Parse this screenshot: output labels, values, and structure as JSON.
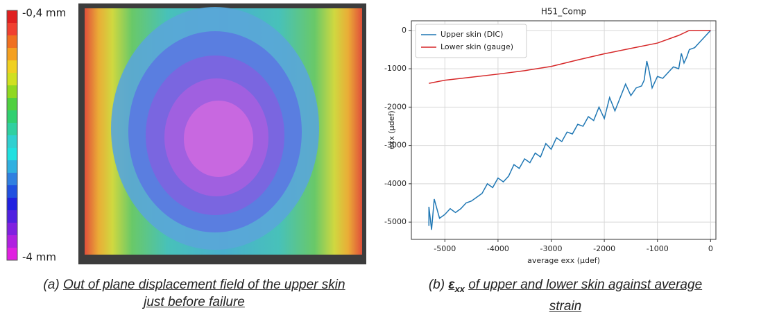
{
  "figure_a": {
    "colorbar_top": "-0,4 mm",
    "colorbar_bottom": "-4 mm"
  },
  "captions": {
    "a": {
      "label": "(a)",
      "text_line1": "Out of plane displacement field of the upper skin",
      "text_line2": "just before failure"
    },
    "b": {
      "label": "(b)",
      "symbol": "ε",
      "subscript": "xx",
      "text_line1": "of upper and lower skin against average",
      "text_line2": "strain"
    }
  },
  "chart_data": {
    "type": "line",
    "title": "H51_Comp",
    "x_label": "average exx (µdef)",
    "y_label": "exx (µdef)",
    "xlim": [
      -5630,
      100
    ],
    "ylim": [
      -5450,
      250
    ],
    "xticks": [
      -5000,
      -4000,
      -3000,
      -2000,
      -1000,
      0
    ],
    "yticks": [
      0,
      -1000,
      -2000,
      -3000,
      -4000,
      -5000
    ],
    "grid": true,
    "legend": "upper left",
    "series": [
      {
        "name": "Upper skin (DIC)",
        "color": "#1f77b4",
        "x": [
          0,
          -100,
          -200,
          -300,
          -400,
          -450,
          -500,
          -550,
          -600,
          -700,
          -800,
          -900,
          -1000,
          -1100,
          -1150,
          -1200,
          -1250,
          -1300,
          -1400,
          -1500,
          -1600,
          -1700,
          -1800,
          -1900,
          -2000,
          -2100,
          -2200,
          -2300,
          -2400,
          -2500,
          -2600,
          -2700,
          -2800,
          -2900,
          -3000,
          -3100,
          -3200,
          -3300,
          -3400,
          -3500,
          -3600,
          -3700,
          -3800,
          -3900,
          -4000,
          -4100,
          -4200,
          -4300,
          -4400,
          -4500,
          -4600,
          -4700,
          -4800,
          -4900,
          -5000,
          -5100,
          -5200,
          -5250,
          -5300,
          -5300
        ],
        "values": [
          0,
          -150,
          -300,
          -450,
          -500,
          -700,
          -850,
          -600,
          -1000,
          -950,
          -1100,
          -1250,
          -1200,
          -1500,
          -1100,
          -800,
          -1300,
          -1450,
          -1500,
          -1700,
          -1400,
          -1750,
          -2100,
          -1750,
          -2300,
          -2000,
          -2350,
          -2250,
          -2500,
          -2450,
          -2700,
          -2650,
          -2900,
          -2800,
          -3100,
          -2950,
          -3300,
          -3200,
          -3450,
          -3350,
          -3600,
          -3500,
          -3800,
          -3950,
          -3850,
          -4100,
          -4000,
          -4250,
          -4350,
          -4450,
          -4500,
          -4650,
          -4750,
          -4650,
          -4800,
          -4900,
          -4400,
          -5200,
          -4600,
          -5100
        ]
      },
      {
        "name": "Lower skin (gauge)",
        "color": "#d62728",
        "x": [
          0,
          -400,
          -600,
          -1000,
          -1500,
          -2000,
          -2500,
          -3000,
          -3500,
          -4000,
          -4500,
          -5000,
          -5300
        ],
        "values": [
          0,
          0,
          -130,
          -330,
          -470,
          -610,
          -770,
          -940,
          -1050,
          -1140,
          -1220,
          -1300,
          -1380
        ]
      }
    ]
  }
}
